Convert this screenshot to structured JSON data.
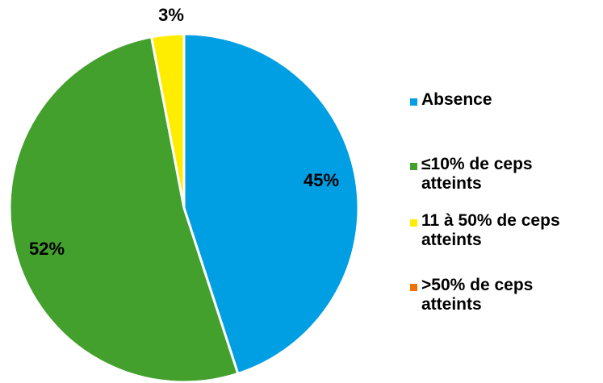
{
  "chart_data": {
    "type": "pie",
    "slices": [
      {
        "label": "Absence",
        "value": 45,
        "value_label": "45%",
        "color": "#009FE3"
      },
      {
        "label": "≤10% de ceps atteints",
        "value": 52,
        "value_label": "52%",
        "color": "#43A02D"
      },
      {
        "label": "11 à 50% de ceps atteints",
        "value": 3,
        "value_label": "3%",
        "color": "#FFED00"
      },
      {
        "label": ">50% de ceps atteints",
        "value": 0,
        "value_label": "",
        "color": "#EE7203"
      }
    ],
    "legend_position": "right",
    "slice_border_color": "#ffffff"
  }
}
